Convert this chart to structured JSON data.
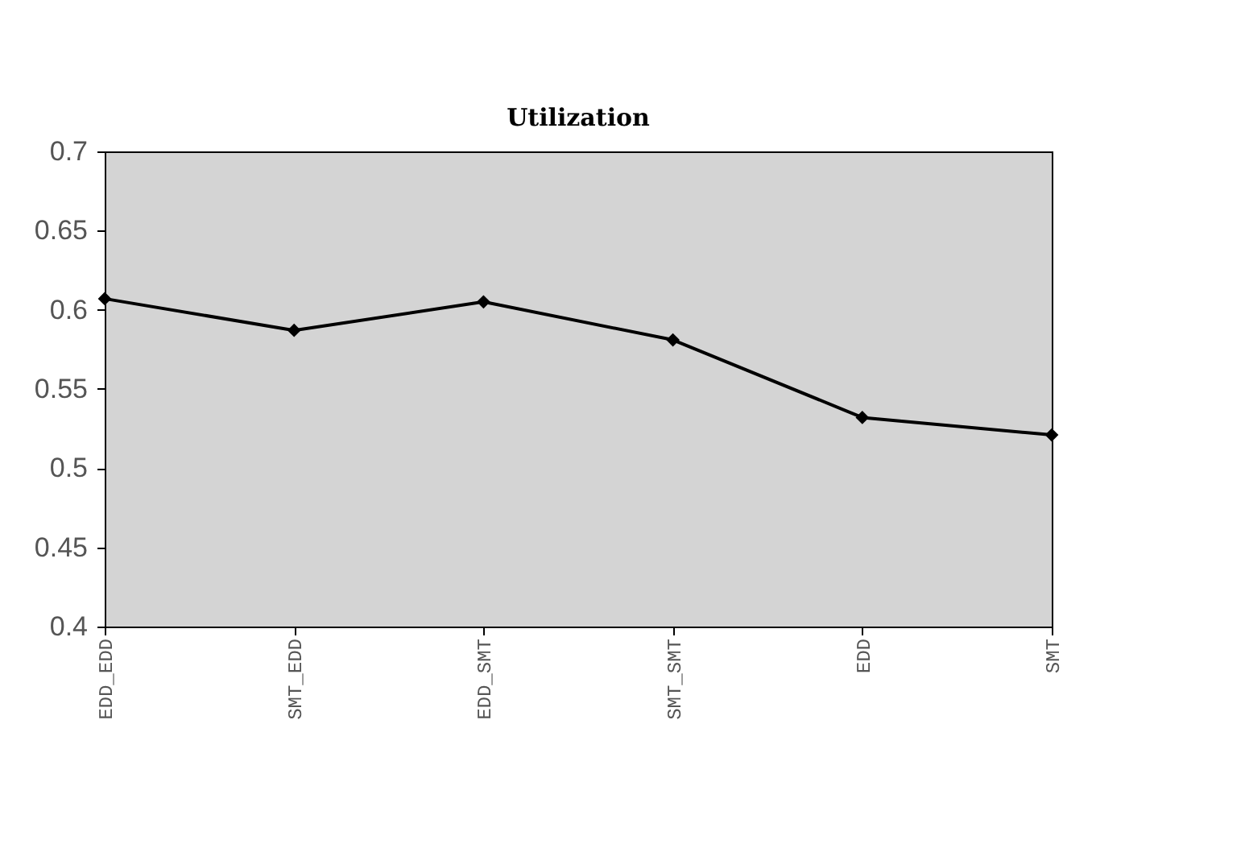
{
  "chart_data": {
    "type": "line",
    "title": "Utilization",
    "categories": [
      "EDD_EDD",
      "SMT_EDD",
      "EDD_SMT",
      "SMT_SMT",
      "EDD",
      "SMT"
    ],
    "series": [
      {
        "color": "#000000",
        "values": [
          0.607,
          0.587,
          0.605,
          0.581,
          0.532,
          0.521
        ]
      }
    ],
    "ylim": [
      0.4,
      0.7
    ],
    "yticks": [
      0.4,
      0.45,
      0.5,
      0.55,
      0.6,
      0.65,
      0.7
    ],
    "grid": false,
    "legend": false,
    "marker": "diamond",
    "line_style": "solid"
  }
}
